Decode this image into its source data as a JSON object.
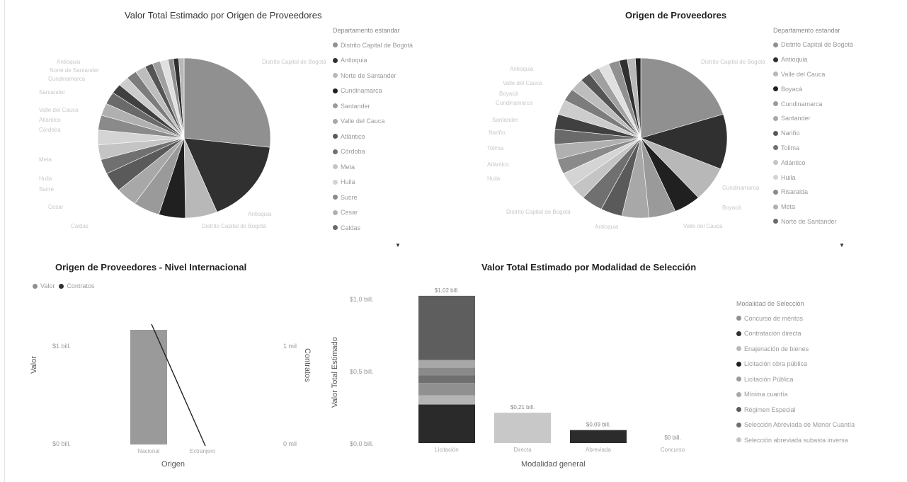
{
  "colors": {
    "bg": "#ffffff",
    "grays": [
      "#909090",
      "#303030",
      "#b8b8b8",
      "#202020",
      "#9a9a9a",
      "#a8a8a8",
      "#5a5a5a",
      "#707070",
      "#c4c4c4",
      "#d4d4d4",
      "#8a8a8a",
      "#b0b0b0",
      "#6a6a6a",
      "#404040",
      "#cccccc",
      "#7c7c7c",
      "#bdbdbd",
      "#555555",
      "#a0a0a0",
      "#e0e0e0"
    ]
  },
  "chart_data": [
    {
      "type": "pie",
      "title": "Valor Total Estimado por Origen de Proveedores",
      "legend_title": "Departamento estandar",
      "legend": [
        "Distrito Capital de Bogotá",
        "Antioquia",
        "Norte de Santander",
        "Cundinamarca",
        "Santander",
        "Valle del Cauca",
        "Atlántico",
        "Córdoba",
        "Meta",
        "Huila",
        "Sucre",
        "Cesar",
        "Caldas"
      ],
      "values": [
        27,
        17,
        6,
        5,
        5,
        4,
        4,
        3,
        3,
        3,
        3,
        2.5,
        2.5,
        2,
        2,
        2,
        2,
        1.5,
        1.5,
        1.5,
        1,
        1,
        1
      ],
      "legend_placement": "right"
    },
    {
      "type": "pie",
      "title": "Origen de Proveedores",
      "legend_title": "Departamento estandar",
      "legend": [
        "Distrito Capital de Bogotá",
        "Antioquia",
        "Valle del Cauca",
        "Boyacá",
        "Cundinamarca",
        "Santander",
        "Nariño",
        "Tolima",
        "Atlántico",
        "Huila",
        "Risaralda",
        "Meta",
        "Norte de Santander"
      ],
      "values": [
        20,
        11,
        7,
        5,
        5,
        5,
        4,
        4,
        3,
        3,
        3,
        3,
        3,
        3,
        3,
        2.5,
        2.5,
        2,
        2,
        2,
        2,
        1.5,
        1.5,
        1
      ],
      "legend_placement": "right"
    },
    {
      "type": "bar",
      "title": "Origen de Proveedores - Nivel Internacional",
      "legend": [
        "Valor",
        "Contratos"
      ],
      "categories": [
        "Nacional",
        "Extranjero"
      ],
      "series": [
        {
          "name": "Valor",
          "values": [
            1.0,
            0.0
          ]
        },
        {
          "name": "Contratos",
          "values": [
            1.0,
            0.0
          ]
        }
      ],
      "xlabel": "Origen",
      "ylabel": "Valor",
      "y2label": "Contratos",
      "yticks": [
        "$1 bill.",
        "$0 bill."
      ],
      "y2ticks": [
        "1 mil",
        "0 mil"
      ]
    },
    {
      "type": "bar",
      "title": "Valor Total Estimado por Modalidad de Selección",
      "legend_title": "Modalidad de Selección",
      "legend": [
        "Concurso de méritos",
        "Contratación directa",
        "Enajenación de bienes",
        "Licitación obra pública",
        "Licitación Pública",
        "Mínima cuantía",
        "Régimen Especial",
        "Selección Abreviada de Menor Cuantía",
        "Selección abreviada subasta inversa"
      ],
      "categories": [
        "Licitación",
        "Directa",
        "Abreviada",
        "Concurso"
      ],
      "bar_labels": [
        "$1,02 bill.",
        "$0,21 bill.",
        "$0,09 bill.",
        "$0 bill."
      ],
      "values": [
        1.02,
        0.21,
        0.09,
        0.0
      ],
      "xlabel": "Modalidad general",
      "ylabel": "Valor Total Estimado",
      "yticks": [
        "$1,0 bill.",
        "$0,5 bill.",
        "$0,0 bill."
      ],
      "ylim": [
        0,
        1.0
      ]
    }
  ],
  "pie_callouts": {
    "left": [
      "Distrito Capital de Bogotá",
      "Antioquia",
      "Norte de Santander",
      "Cundinamarca",
      "Santander",
      "Valle del Cauca",
      "Atlántico",
      "Córdoba",
      "Meta",
      "Huila",
      "Sucre",
      "Cesar",
      "Caldas"
    ],
    "right": [
      "Distrito Capital de Bogotá",
      "Antioquia",
      "Valle del Cauca",
      "Boyacá",
      "Cundinamarca",
      "Santander",
      "Nariño",
      "Tolima",
      "Atlántico",
      "Huila"
    ]
  }
}
